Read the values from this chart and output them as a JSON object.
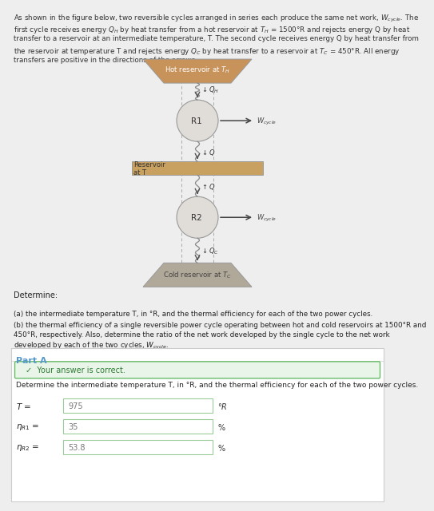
{
  "panel_color": "#f5e6c8",
  "hot_color": "#c8935a",
  "reservoir_t_color": "#c8a060",
  "cold_color": "#b0a898",
  "circle_facecolor": "#e0ddd8",
  "circle_edgecolor": "#999999",
  "dashed_color": "#aaaaaa",
  "arrow_color": "#555555",
  "wavy_color": "#888888",
  "text_color": "#333333",
  "hot_reservoir_label": "Hot reservoir at $T_H$",
  "cold_reservoir_label": "Cold reservoir at $T_C$",
  "reservoir_t_label": "Reservoir\nat T",
  "r1_label": "R1",
  "r2_label": "R2",
  "part_a_bg": "#f8f8f8",
  "part_a_border": "#dddddd",
  "correct_box_color": "#eaf5ea",
  "correct_box_border": "#66bb66",
  "input_box_border": "#99cc99",
  "part_a_title_color": "#5599cc",
  "T_value": "975",
  "eta_R1_value": "35",
  "eta_R2_value": "53.8",
  "problem_lines": [
    "As shown in the figure below, two reversible cycles arranged in series each produce the same net work, $W_{cycle}$. The",
    "first cycle receives energy $Q_H$ by heat transfer from a hot reservoir at $T_H$ = 1500°R and rejects energy Q by heat",
    "transfer to a reservoir at an intermediate temperature, T. The second cycle receives energy Q by heat transfer from",
    "the reservoir at temperature T and rejects energy $Q_C$ by heat transfer to a reservoir at $T_C$ = 450°R. All energy",
    "transfers are positive in the directions of the arrows."
  ],
  "determine_line": "Determine:",
  "part_a_line": "(a) the intermediate temperature T, in °R, and the thermal efficiency for each of the two power cycles.",
  "part_b_lines": [
    "(b) the thermal efficiency of a single reversible power cycle operating between hot and cold reservoirs at 1500°R and",
    "450°R, respectively. Also, determine the ratio of the net work developed by the single cycle to the net work",
    "developed by each of the two cycles, $W_{cycle}$."
  ],
  "correct_text": "✓  Your answer is correct.",
  "sub_question": "Determine the intermediate temperature T, in °R, and the thermal efficiency for each of the two power cycles."
}
